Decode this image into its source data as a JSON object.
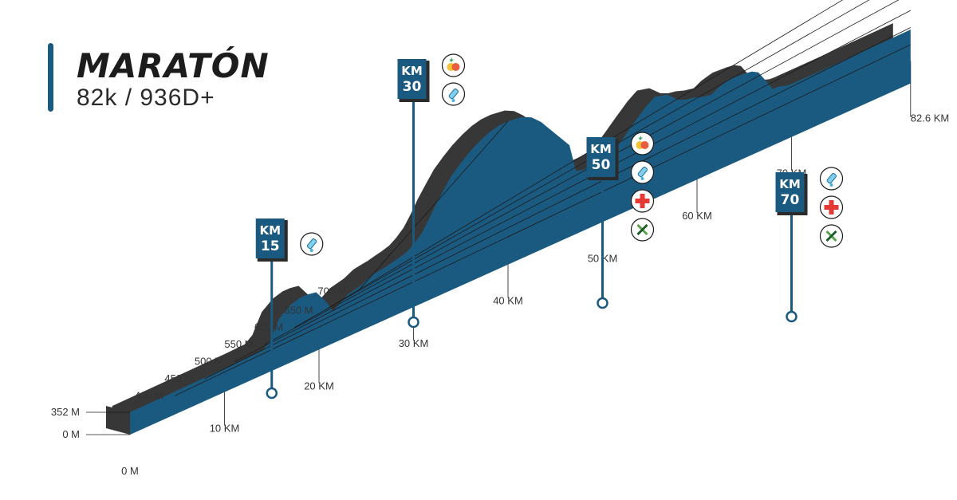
{
  "header": {
    "title": "MARATÓN",
    "subtitle": "82k / 936D+"
  },
  "colors": {
    "profile": "#1b5a80",
    "shadow": "#373737",
    "line": "#1c1c1c",
    "cross": "#e53935",
    "badge_border": "#2b2b2b"
  },
  "chart_data": {
    "type": "area",
    "xlabel": "",
    "ylabel": "",
    "x_ticks": [
      "0 M",
      "10 KM",
      "20 KM",
      "30 KM",
      "40 KM",
      "50 KM",
      "60 KM",
      "70 KM",
      "82.6 KM"
    ],
    "y_ticks": [
      "0 M",
      "352 M",
      "400 M",
      "450 M",
      "500 M",
      "550 M",
      "600 M",
      "650 M",
      "706 M"
    ],
    "xlim": [
      0,
      82.6
    ],
    "elevation_profile": {
      "unit_x": "km",
      "unit_y": "m",
      "points": [
        [
          0,
          352
        ],
        [
          12,
          356
        ],
        [
          14,
          358
        ],
        [
          14.8,
          375
        ],
        [
          15.8,
          430
        ],
        [
          17,
          455
        ],
        [
          18,
          463
        ],
        [
          18.8,
          463
        ],
        [
          19.7,
          458
        ],
        [
          20.7,
          420
        ],
        [
          21.5,
          380
        ],
        [
          22.2,
          395
        ],
        [
          23,
          410
        ],
        [
          24.5,
          420
        ],
        [
          25.5,
          434
        ],
        [
          26.4,
          438
        ],
        [
          27,
          440
        ],
        [
          27.7,
          445
        ],
        [
          28.5,
          450
        ],
        [
          29.3,
          457
        ],
        [
          30,
          470
        ],
        [
          30.8,
          490
        ],
        [
          31.5,
          518
        ],
        [
          32.3,
          555
        ],
        [
          33.2,
          590
        ],
        [
          34,
          620
        ],
        [
          35,
          646
        ],
        [
          36,
          668
        ],
        [
          37,
          685
        ],
        [
          38,
          698
        ],
        [
          39,
          705
        ],
        [
          40,
          706
        ],
        [
          41.5,
          700
        ],
        [
          42.5,
          686
        ],
        [
          43.5,
          660
        ],
        [
          44.5,
          625
        ],
        [
          45.5,
          590
        ],
        [
          46.5,
          555
        ],
        [
          47.2,
          470
        ],
        [
          48,
          465
        ],
        [
          49.2,
          465
        ],
        [
          50,
          466
        ],
        [
          51,
          476
        ],
        [
          52,
          500
        ],
        [
          53.2,
          532
        ],
        [
          54.5,
          565
        ],
        [
          55.5,
          584
        ],
        [
          56.8,
          575
        ],
        [
          58,
          545
        ],
        [
          58.8,
          535
        ],
        [
          59.6,
          531
        ],
        [
          60.5,
          522
        ],
        [
          61.5,
          516
        ],
        [
          62.3,
          528
        ],
        [
          63.5,
          537
        ],
        [
          65,
          534
        ],
        [
          65.8,
          530
        ],
        [
          66.5,
          519
        ],
        [
          67.5,
          475
        ],
        [
          68,
          452
        ],
        [
          68.8,
          450
        ],
        [
          69.5,
          443
        ],
        [
          70,
          442
        ],
        [
          75,
          442
        ],
        [
          82.6,
          444
        ]
      ]
    },
    "aid_stations": [
      {
        "label": "KM 15",
        "km_top": "KM",
        "km_num": "15",
        "km": 15,
        "services": [
          "water-bottle"
        ]
      },
      {
        "label": "KM 30",
        "km_top": "KM",
        "km_num": "30",
        "km": 30,
        "services": [
          "fruit",
          "water-bottle"
        ]
      },
      {
        "label": "KM 50",
        "km_top": "KM",
        "km_num": "50",
        "km": 50,
        "services": [
          "fruit",
          "water-bottle",
          "medical-cross",
          "tools"
        ]
      },
      {
        "label": "KM 70",
        "km_top": "KM",
        "km_num": "70",
        "km": 70,
        "services": [
          "water-bottle",
          "medical-cross",
          "tools"
        ]
      }
    ]
  }
}
